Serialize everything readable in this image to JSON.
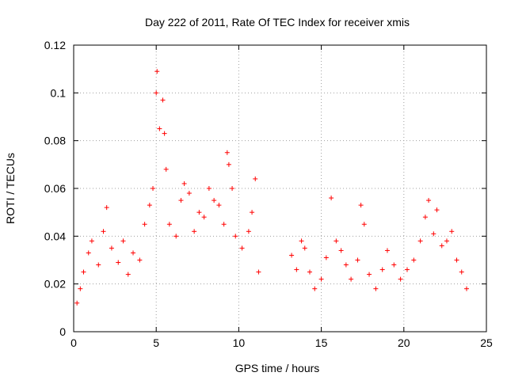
{
  "chart_data": {
    "type": "scatter",
    "title": "Day 222 of 2011, Rate Of TEC Index for receiver xmis",
    "xlabel": "GPS time / hours",
    "ylabel": "ROTI / TECUs",
    "xlim": [
      0,
      25
    ],
    "ylim": [
      0,
      0.12
    ],
    "x_ticks": [
      "0",
      "5",
      "10",
      "15",
      "20",
      "25"
    ],
    "x_tick_values": [
      0,
      5,
      10,
      15,
      20,
      25
    ],
    "y_ticks": [
      "0",
      "0.02",
      "0.04",
      "0.06",
      "0.08",
      "0.1",
      "0.12"
    ],
    "y_tick_values": [
      0,
      0.02,
      0.04,
      0.06,
      0.08,
      0.1,
      0.12
    ],
    "grid": true,
    "marker": "+",
    "color": "#ff0000",
    "series": [
      {
        "name": "ROTI",
        "points": [
          [
            0.2,
            0.012
          ],
          [
            0.4,
            0.018
          ],
          [
            0.6,
            0.025
          ],
          [
            0.9,
            0.033
          ],
          [
            1.1,
            0.038
          ],
          [
            1.5,
            0.028
          ],
          [
            1.8,
            0.042
          ],
          [
            2.0,
            0.052
          ],
          [
            2.3,
            0.035
          ],
          [
            2.7,
            0.029
          ],
          [
            3.0,
            0.038
          ],
          [
            3.3,
            0.024
          ],
          [
            3.6,
            0.033
          ],
          [
            4.0,
            0.03
          ],
          [
            4.3,
            0.045
          ],
          [
            4.6,
            0.053
          ],
          [
            4.8,
            0.06
          ],
          [
            5.0,
            0.1
          ],
          [
            5.05,
            0.109
          ],
          [
            5.2,
            0.085
          ],
          [
            5.4,
            0.097
          ],
          [
            5.5,
            0.083
          ],
          [
            5.6,
            0.068
          ],
          [
            5.8,
            0.045
          ],
          [
            6.2,
            0.04
          ],
          [
            6.5,
            0.055
          ],
          [
            6.7,
            0.062
          ],
          [
            7.0,
            0.058
          ],
          [
            7.3,
            0.042
          ],
          [
            7.6,
            0.05
          ],
          [
            7.9,
            0.048
          ],
          [
            8.2,
            0.06
          ],
          [
            8.5,
            0.055
          ],
          [
            8.8,
            0.053
          ],
          [
            9.1,
            0.045
          ],
          [
            9.3,
            0.075
          ],
          [
            9.4,
            0.07
          ],
          [
            9.6,
            0.06
          ],
          [
            9.8,
            0.04
          ],
          [
            10.2,
            0.035
          ],
          [
            10.6,
            0.042
          ],
          [
            10.8,
            0.05
          ],
          [
            11.0,
            0.064
          ],
          [
            11.2,
            0.025
          ],
          [
            13.2,
            0.032
          ],
          [
            13.5,
            0.026
          ],
          [
            13.8,
            0.038
          ],
          [
            14.0,
            0.035
          ],
          [
            14.3,
            0.025
          ],
          [
            14.6,
            0.018
          ],
          [
            15.0,
            0.022
          ],
          [
            15.3,
            0.031
          ],
          [
            15.6,
            0.056
          ],
          [
            15.9,
            0.038
          ],
          [
            16.2,
            0.034
          ],
          [
            16.5,
            0.028
          ],
          [
            16.8,
            0.022
          ],
          [
            17.2,
            0.03
          ],
          [
            17.4,
            0.053
          ],
          [
            17.6,
            0.045
          ],
          [
            17.9,
            0.024
          ],
          [
            18.3,
            0.018
          ],
          [
            18.7,
            0.026
          ],
          [
            19.0,
            0.034
          ],
          [
            19.4,
            0.028
          ],
          [
            19.8,
            0.022
          ],
          [
            20.2,
            0.026
          ],
          [
            20.6,
            0.03
          ],
          [
            21.0,
            0.038
          ],
          [
            21.3,
            0.048
          ],
          [
            21.5,
            0.055
          ],
          [
            21.8,
            0.041
          ],
          [
            22.0,
            0.051
          ],
          [
            22.3,
            0.036
          ],
          [
            22.6,
            0.038
          ],
          [
            22.9,
            0.042
          ],
          [
            23.2,
            0.03
          ],
          [
            23.5,
            0.025
          ],
          [
            23.8,
            0.018
          ]
        ]
      }
    ]
  }
}
